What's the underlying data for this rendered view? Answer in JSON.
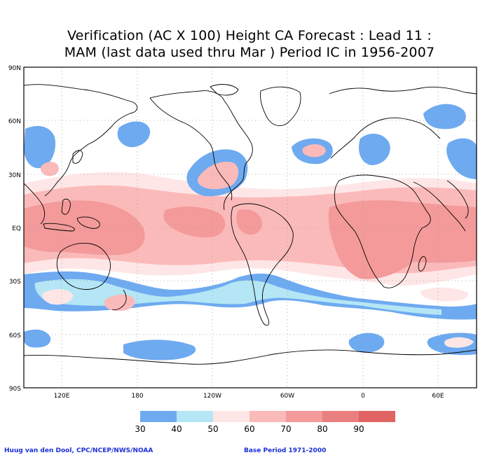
{
  "title": {
    "line1": "Verification (AC X 100) Height CA Forecast : Lead 11 :",
    "line2": "MAM (last data used thru Mar ) Period IC in 1956-2007"
  },
  "axes": {
    "lat_labels": [
      "90N",
      "60N",
      "30N",
      "EQ",
      "30S",
      "60S",
      "90S"
    ],
    "lon_labels": [
      "120E",
      "180",
      "120W",
      "60W",
      "0",
      "60E"
    ]
  },
  "legend": {
    "ticks": [
      "30",
      "40",
      "50",
      "60",
      "70",
      "80",
      "90"
    ],
    "colors": [
      "#6eaaf0",
      "#b4e6f5",
      "#ffe6e6",
      "#fbbaba",
      "#f49a9a",
      "#ea7f7f",
      "#e06464"
    ]
  },
  "credits": {
    "left": "Huug van den Dool, CPC/NCEP/NWS/NOAA",
    "right": "Base Period 1971-2000"
  },
  "colors": {
    "frame": "#000000",
    "grid": "#9a9a9a",
    "coast": "#000000"
  }
}
